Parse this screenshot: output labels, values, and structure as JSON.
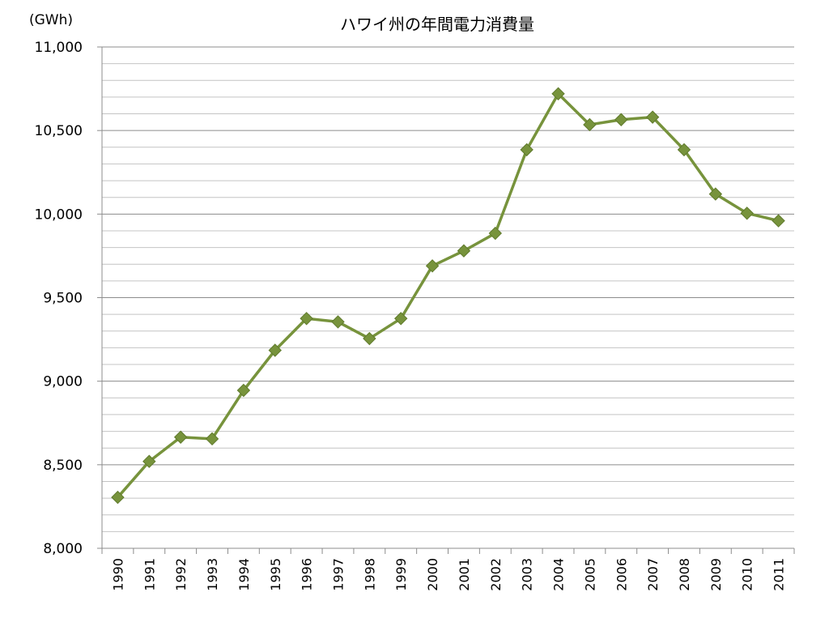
{
  "chart_data": {
    "type": "line",
    "title": "ハワイ州の年間電力消費量",
    "unit_label": "(GWh)",
    "xlabel": "",
    "ylabel": "",
    "categories": [
      "1990",
      "1991",
      "1992",
      "1993",
      "1994",
      "1995",
      "1996",
      "1997",
      "1998",
      "1999",
      "2000",
      "2001",
      "2002",
      "2003",
      "2004",
      "2005",
      "2006",
      "2007",
      "2008",
      "2009",
      "2010",
      "2011"
    ],
    "series": [
      {
        "values": [
          8305,
          8520,
          8665,
          8655,
          8945,
          9185,
          9375,
          9355,
          9255,
          9375,
          9690,
          9780,
          9885,
          10385,
          10720,
          10535,
          10565,
          10580,
          10385,
          10120,
          10005,
          9960
        ],
        "color": "#77933c",
        "marker": "diamond"
      }
    ],
    "ylim": [
      8000,
      11000
    ],
    "ytick_labels": [
      "8,000",
      "8,500",
      "9,000",
      "9,500",
      "10,000",
      "10,500",
      "11,000"
    ],
    "major_tick_step": 500,
    "minor_tick_step": 100,
    "grid": true,
    "legend": "none"
  }
}
